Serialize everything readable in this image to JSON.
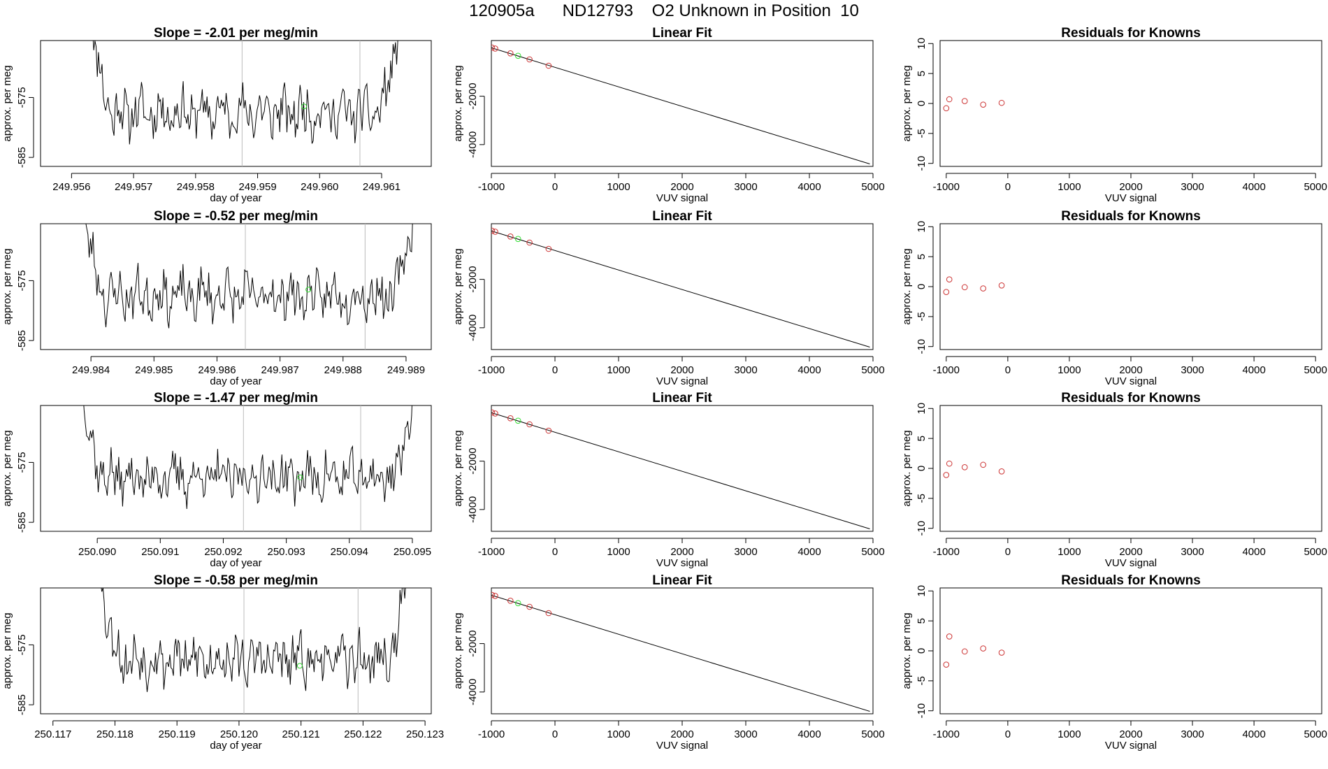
{
  "page_title": "120905a      ND12793    O2 Unknown in Position  10",
  "colors": {
    "line": "#000000",
    "known_point": "#cc3333",
    "unknown_point": "#33dd33",
    "marker_line": "#bbbbbb",
    "frame": "#000000"
  },
  "chart_data": [
    {
      "type": "line",
      "row": 0,
      "panel": "time-series",
      "title": "Slope =  -2.01  per meg/min",
      "xlabel": "day of year",
      "ylabel": "approx. per meg",
      "xlim": [
        249.9555,
        249.9618
      ],
      "ylim": [
        -586.5,
        -565.5
      ],
      "xticks": [
        "249.956",
        "249.957",
        "249.958",
        "249.959",
        "249.960",
        "249.961"
      ],
      "xtick_values": [
        249.956,
        249.957,
        249.958,
        249.959,
        249.96,
        249.961
      ],
      "yticks": [
        "-575",
        "-585"
      ],
      "ytick_values": [
        -575,
        -585
      ],
      "x_start": 249.9563,
      "x_end": 249.9613,
      "start_value": -560,
      "end_value": -560,
      "noise_seed": 11,
      "marker_lines": [
        249.95875,
        249.96065
      ],
      "unknown_point": {
        "x": 249.95975,
        "y": -576.5
      }
    },
    {
      "type": "scatter",
      "row": 0,
      "panel": "linear-fit",
      "title": "Linear Fit",
      "xlabel": "VUV signal",
      "ylabel": "approx. per meg",
      "xlim": [
        -1000,
        5000
      ],
      "ylim": [
        -4900,
        300
      ],
      "xticks": [
        "-1000",
        "0",
        "1000",
        "2000",
        "3000",
        "4000",
        "5000"
      ],
      "xtick_values": [
        -1000,
        0,
        1000,
        2000,
        3000,
        4000,
        5000
      ],
      "yticks": [
        "-2000",
        "-4000"
      ],
      "ytick_values": [
        -2000,
        -4000
      ],
      "fit_line": {
        "x": [
          -1000,
          4950
        ],
        "y": [
          0,
          -4800
        ]
      },
      "known_points": [
        {
          "x": -990,
          "y": 10
        },
        {
          "x": -940,
          "y": -30
        },
        {
          "x": -700,
          "y": -230
        },
        {
          "x": -400,
          "y": -480
        },
        {
          "x": -100,
          "y": -740
        }
      ],
      "unknown_points": [
        {
          "x": -580,
          "y": -330
        }
      ]
    },
    {
      "type": "scatter",
      "row": 0,
      "panel": "residuals",
      "title": "Residuals for Knowns",
      "xlabel": "VUV signal",
      "ylabel": "approx. per meg",
      "xlim": [
        -1100,
        5100
      ],
      "ylim": [
        -10.5,
        10.5
      ],
      "xticks": [
        "-1000",
        "0",
        "1000",
        "2000",
        "3000",
        "4000",
        "5000"
      ],
      "xtick_values": [
        -1000,
        0,
        1000,
        2000,
        3000,
        4000,
        5000
      ],
      "yticks": [
        "10",
        "5",
        "0",
        "-5",
        "-10"
      ],
      "ytick_values": [
        10,
        5,
        0,
        -5,
        -10
      ],
      "known_points": [
        {
          "x": -1000,
          "y": -0.8
        },
        {
          "x": -950,
          "y": 0.7
        },
        {
          "x": -700,
          "y": 0.4
        },
        {
          "x": -400,
          "y": -0.2
        },
        {
          "x": -100,
          "y": 0.1
        }
      ]
    },
    {
      "type": "line",
      "row": 1,
      "panel": "time-series",
      "title": "Slope =  -0.52  per meg/min",
      "xlabel": "day of year",
      "ylabel": "approx. per meg",
      "xlim": [
        249.9832,
        249.9894
      ],
      "ylim": [
        -586.5,
        -565.5
      ],
      "xticks": [
        "249.984",
        "249.985",
        "249.986",
        "249.987",
        "249.988",
        "249.989"
      ],
      "xtick_values": [
        249.984,
        249.985,
        249.986,
        249.987,
        249.988,
        249.989
      ],
      "yticks": [
        "-575",
        "-585"
      ],
      "ytick_values": [
        -575,
        -585
      ],
      "x_start": 249.98385,
      "x_end": 249.98915,
      "start_value": -560,
      "end_value": -560,
      "noise_seed": 23,
      "marker_lines": [
        249.98645,
        249.98835
      ],
      "unknown_point": {
        "x": 249.98745,
        "y": -576.5
      }
    },
    {
      "type": "scatter",
      "row": 1,
      "panel": "linear-fit",
      "title": "Linear Fit",
      "xlabel": "VUV signal",
      "ylabel": "approx. per meg",
      "xlim": [
        -1000,
        5000
      ],
      "ylim": [
        -4900,
        300
      ],
      "xticks": [
        "-1000",
        "0",
        "1000",
        "2000",
        "3000",
        "4000",
        "5000"
      ],
      "xtick_values": [
        -1000,
        0,
        1000,
        2000,
        3000,
        4000,
        5000
      ],
      "yticks": [
        "-2000",
        "-4000"
      ],
      "ytick_values": [
        -2000,
        -4000
      ],
      "fit_line": {
        "x": [
          -1000,
          4950
        ],
        "y": [
          0,
          -4800
        ]
      },
      "known_points": [
        {
          "x": -990,
          "y": 10
        },
        {
          "x": -940,
          "y": -30
        },
        {
          "x": -700,
          "y": -230
        },
        {
          "x": -400,
          "y": -480
        },
        {
          "x": -100,
          "y": -740
        }
      ],
      "unknown_points": [
        {
          "x": -580,
          "y": -330
        }
      ]
    },
    {
      "type": "scatter",
      "row": 1,
      "panel": "residuals",
      "title": "Residuals for Knowns",
      "xlabel": "VUV signal",
      "ylabel": "approx. per meg",
      "xlim": [
        -1100,
        5100
      ],
      "ylim": [
        -10.5,
        10.5
      ],
      "xticks": [
        "-1000",
        "0",
        "1000",
        "2000",
        "3000",
        "4000",
        "5000"
      ],
      "xtick_values": [
        -1000,
        0,
        1000,
        2000,
        3000,
        4000,
        5000
      ],
      "yticks": [
        "10",
        "5",
        "0",
        "-5",
        "-10"
      ],
      "ytick_values": [
        10,
        5,
        0,
        -5,
        -10
      ],
      "known_points": [
        {
          "x": -1000,
          "y": -0.9
        },
        {
          "x": -950,
          "y": 1.2
        },
        {
          "x": -700,
          "y": -0.1
        },
        {
          "x": -400,
          "y": -0.3
        },
        {
          "x": -100,
          "y": 0.2
        }
      ]
    },
    {
      "type": "line",
      "row": 2,
      "panel": "time-series",
      "title": "Slope =  -1.47  per meg/min",
      "xlabel": "day of year",
      "ylabel": "approx. per meg",
      "xlim": [
        250.0891,
        250.0953
      ],
      "ylim": [
        -586.5,
        -565.5
      ],
      "xticks": [
        "250.090",
        "250.091",
        "250.092",
        "250.093",
        "250.094",
        "250.095"
      ],
      "xtick_values": [
        250.09,
        250.091,
        250.092,
        250.093,
        250.094,
        250.095
      ],
      "yticks": [
        "-575",
        "-585"
      ],
      "ytick_values": [
        -575,
        -585
      ],
      "x_start": 250.08975,
      "x_end": 250.09505,
      "start_value": -563,
      "end_value": -560,
      "noise_seed": 37,
      "marker_lines": [
        250.09232,
        250.09418
      ],
      "unknown_point": {
        "x": 250.09322,
        "y": -577.5
      }
    },
    {
      "type": "scatter",
      "row": 2,
      "panel": "linear-fit",
      "title": "Linear Fit",
      "xlabel": "VUV signal",
      "ylabel": "approx. per meg",
      "xlim": [
        -1000,
        5000
      ],
      "ylim": [
        -4900,
        300
      ],
      "xticks": [
        "-1000",
        "0",
        "1000",
        "2000",
        "3000",
        "4000",
        "5000"
      ],
      "xtick_values": [
        -1000,
        0,
        1000,
        2000,
        3000,
        4000,
        5000
      ],
      "yticks": [
        "-2000",
        "-4000"
      ],
      "ytick_values": [
        -2000,
        -4000
      ],
      "fit_line": {
        "x": [
          -1000,
          4950
        ],
        "y": [
          0,
          -4800
        ]
      },
      "known_points": [
        {
          "x": -990,
          "y": 10
        },
        {
          "x": -940,
          "y": -30
        },
        {
          "x": -700,
          "y": -230
        },
        {
          "x": -400,
          "y": -480
        },
        {
          "x": -100,
          "y": -740
        }
      ],
      "unknown_points": [
        {
          "x": -580,
          "y": -330
        }
      ]
    },
    {
      "type": "scatter",
      "row": 2,
      "panel": "residuals",
      "title": "Residuals for Knowns",
      "xlabel": "VUV signal",
      "ylabel": "approx. per meg",
      "xlim": [
        -1100,
        5100
      ],
      "ylim": [
        -10.5,
        10.5
      ],
      "xticks": [
        "-1000",
        "0",
        "1000",
        "2000",
        "3000",
        "4000",
        "5000"
      ],
      "xtick_values": [
        -1000,
        0,
        1000,
        2000,
        3000,
        4000,
        5000
      ],
      "yticks": [
        "10",
        "5",
        "0",
        "-5",
        "-10"
      ],
      "ytick_values": [
        10,
        5,
        0,
        -5,
        -10
      ],
      "known_points": [
        {
          "x": -1000,
          "y": -1.1
        },
        {
          "x": -950,
          "y": 0.8
        },
        {
          "x": -700,
          "y": 0.2
        },
        {
          "x": -400,
          "y": 0.6
        },
        {
          "x": -100,
          "y": -0.5
        }
      ]
    },
    {
      "type": "line",
      "row": 3,
      "panel": "time-series",
      "title": "Slope =  -0.58  per meg/min",
      "xlabel": "day of year",
      "ylabel": "approx. per meg",
      "xlim": [
        250.1168,
        250.1231
      ],
      "ylim": [
        -586.5,
        -565.5
      ],
      "xticks": [
        "250.117",
        "250.118",
        "250.119",
        "250.120",
        "250.121",
        "250.122",
        "250.123"
      ],
      "xtick_values": [
        250.117,
        250.118,
        250.119,
        250.12,
        250.121,
        250.122,
        250.123
      ],
      "yticks": [
        "-575",
        "-585"
      ],
      "ytick_values": [
        -575,
        -585
      ],
      "x_start": 250.11775,
      "x_end": 250.12275,
      "start_value": -562,
      "end_value": -560,
      "noise_seed": 53,
      "marker_lines": [
        250.12008,
        250.12192
      ],
      "unknown_point": {
        "x": 250.12098,
        "y": -578.5
      }
    },
    {
      "type": "scatter",
      "row": 3,
      "panel": "linear-fit",
      "title": "Linear Fit",
      "xlabel": "VUV signal",
      "ylabel": "approx. per meg",
      "xlim": [
        -1000,
        5000
      ],
      "ylim": [
        -4900,
        300
      ],
      "xticks": [
        "-1000",
        "0",
        "1000",
        "2000",
        "3000",
        "4000",
        "5000"
      ],
      "xtick_values": [
        -1000,
        0,
        1000,
        2000,
        3000,
        4000,
        5000
      ],
      "yticks": [
        "-2000",
        "-4000"
      ],
      "ytick_values": [
        -2000,
        -4000
      ],
      "fit_line": {
        "x": [
          -1000,
          4950
        ],
        "y": [
          0,
          -4800
        ]
      },
      "known_points": [
        {
          "x": -990,
          "y": 10
        },
        {
          "x": -940,
          "y": -30
        },
        {
          "x": -700,
          "y": -230
        },
        {
          "x": -400,
          "y": -480
        },
        {
          "x": -100,
          "y": -740
        }
      ],
      "unknown_points": [
        {
          "x": -580,
          "y": -330
        }
      ]
    },
    {
      "type": "scatter",
      "row": 3,
      "panel": "residuals",
      "title": "Residuals for Knowns",
      "xlabel": "VUV signal",
      "ylabel": "approx. per meg",
      "xlim": [
        -1100,
        5100
      ],
      "ylim": [
        -10.5,
        10.5
      ],
      "xticks": [
        "-1000",
        "0",
        "1000",
        "2000",
        "3000",
        "4000",
        "5000"
      ],
      "xtick_values": [
        -1000,
        0,
        1000,
        2000,
        3000,
        4000,
        5000
      ],
      "yticks": [
        "10",
        "5",
        "0",
        "-5",
        "-10"
      ],
      "ytick_values": [
        10,
        5,
        0,
        -5,
        -10
      ],
      "known_points": [
        {
          "x": -1000,
          "y": -2.3
        },
        {
          "x": -950,
          "y": 2.4
        },
        {
          "x": -700,
          "y": -0.1
        },
        {
          "x": -400,
          "y": 0.4
        },
        {
          "x": -100,
          "y": -0.3
        }
      ]
    }
  ]
}
